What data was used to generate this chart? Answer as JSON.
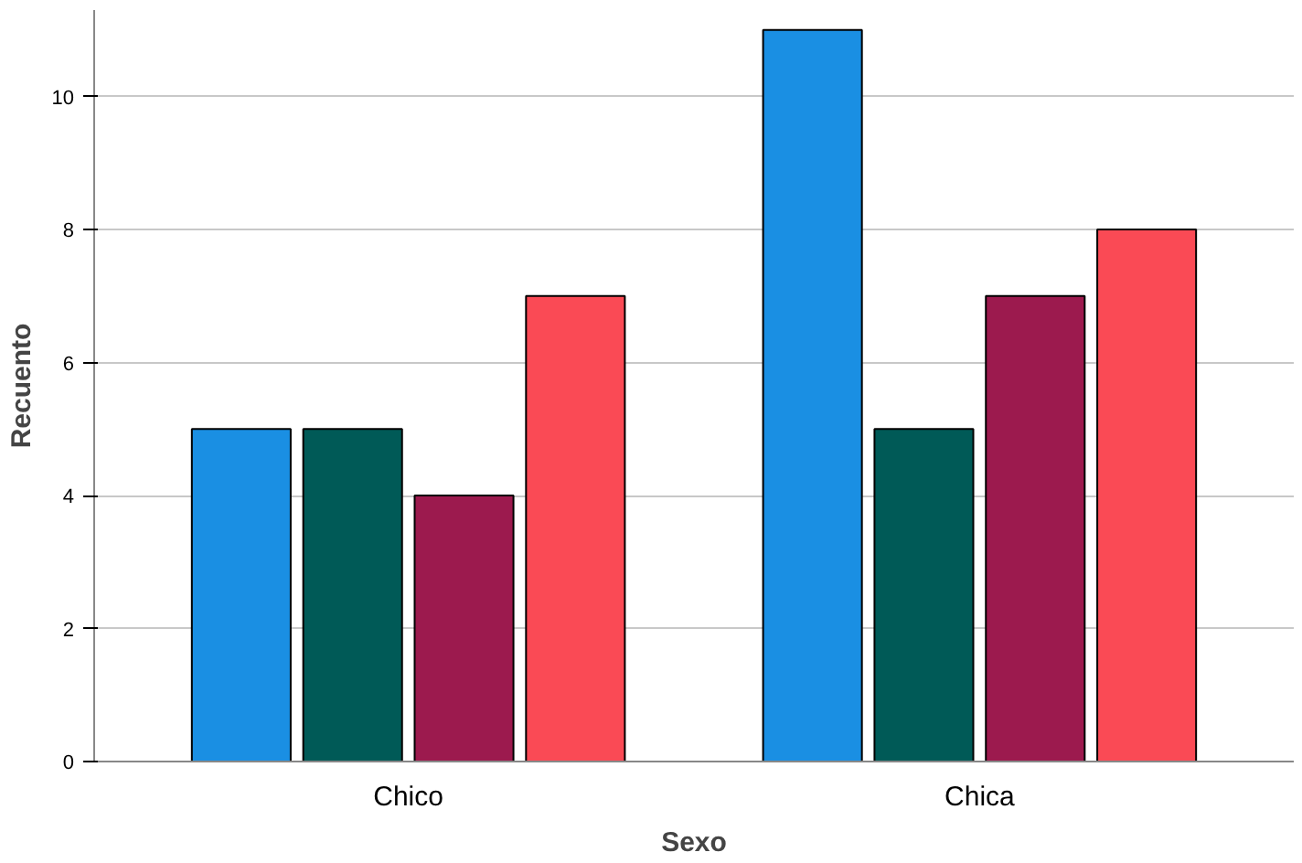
{
  "chart_data": {
    "type": "bar",
    "xlabel": "Sexo",
    "ylabel": "Recuento",
    "categories": [
      "Chico",
      "Chica"
    ],
    "series": [
      {
        "color": "#1a8fe3",
        "values": [
          5,
          11
        ]
      },
      {
        "color": "#005a57",
        "values": [
          5,
          5
        ]
      },
      {
        "color": "#9c1a4e",
        "values": [
          4,
          7
        ]
      },
      {
        "color": "#fa4a55",
        "values": [
          7,
          8
        ]
      }
    ],
    "ylim": [
      0,
      11.3
    ],
    "yticks": [
      0,
      2,
      4,
      6,
      8,
      10
    ],
    "grid": "y"
  }
}
